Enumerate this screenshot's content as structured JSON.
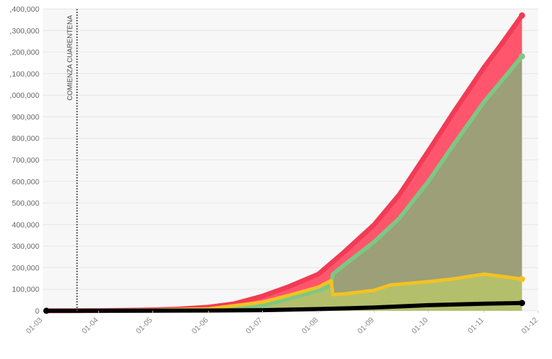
{
  "chart_data": {
    "type": "area",
    "title": "",
    "xlabel": "",
    "ylabel": "",
    "x": [
      "01-03",
      "01-04",
      "01-05",
      "01-06",
      "01-07",
      "01-08",
      "01-09",
      "01-10",
      "01-11"
    ],
    "x_ticks": [
      "01-03",
      "01-04",
      "01-05",
      "01-06",
      "01-07",
      "01-08",
      "01-09",
      "01-10",
      "01-11",
      "01-12"
    ],
    "xlim": [
      "01-03",
      "01-12"
    ],
    "y_ticks": [
      "0",
      "100,000",
      "200,000",
      "300,000",
      "400,000",
      "500,000",
      "600,000",
      "700,000",
      "800,000",
      "900,000",
      ",000,000",
      ",100,000",
      ",200,000",
      ",300,000",
      ",400,000"
    ],
    "ylim": [
      0,
      1400000
    ],
    "grid": true,
    "legend": "none",
    "annotations": [
      {
        "label": "COMIENZA CUARENTENA",
        "x": "2020-03-20",
        "style": "dotted-vertical-line"
      }
    ],
    "series": [
      {
        "color": "#f23b55",
        "points": [
          [
            "2020-03-03",
            0
          ],
          [
            "2020-03-20",
            200
          ],
          [
            "2020-04-01",
            1000
          ],
          [
            "2020-04-15",
            2500
          ],
          [
            "2020-05-01",
            4500
          ],
          [
            "2020-05-15",
            8000
          ],
          [
            "2020-06-01",
            17000
          ],
          [
            "2020-06-15",
            32000
          ],
          [
            "2020-07-01",
            68000
          ],
          [
            "2020-07-15",
            110000
          ],
          [
            "2020-08-01",
            170000
          ],
          [
            "2020-08-15",
            270000
          ],
          [
            "2020-09-01",
            400000
          ],
          [
            "2020-09-15",
            540000
          ],
          [
            "2020-10-01",
            740000
          ],
          [
            "2020-10-15",
            920000
          ],
          [
            "2020-11-01",
            1130000
          ],
          [
            "2020-11-10",
            1230000
          ],
          [
            "2020-11-22",
            1370000
          ]
        ]
      },
      {
        "color": "#7dc882",
        "points": [
          [
            "2020-03-03",
            0
          ],
          [
            "2020-04-01",
            300
          ],
          [
            "2020-05-01",
            1500
          ],
          [
            "2020-06-01",
            7000
          ],
          [
            "2020-07-01",
            25000
          ],
          [
            "2020-07-15",
            55000
          ],
          [
            "2020-08-01",
            95000
          ],
          [
            "2020-08-08",
            115000
          ],
          [
            "2020-08-09",
            170000
          ],
          [
            "2020-08-15",
            210000
          ],
          [
            "2020-09-01",
            320000
          ],
          [
            "2020-09-15",
            430000
          ],
          [
            "2020-10-01",
            600000
          ],
          [
            "2020-10-15",
            770000
          ],
          [
            "2020-11-01",
            970000
          ],
          [
            "2020-11-10",
            1060000
          ],
          [
            "2020-11-22",
            1180000
          ]
        ]
      },
      {
        "color": "#f2c224",
        "points": [
          [
            "2020-03-03",
            0
          ],
          [
            "2020-04-01",
            700
          ],
          [
            "2020-05-01",
            3000
          ],
          [
            "2020-06-01",
            9000
          ],
          [
            "2020-07-01",
            40000
          ],
          [
            "2020-07-15",
            70000
          ],
          [
            "2020-08-01",
            110000
          ],
          [
            "2020-08-08",
            140000
          ],
          [
            "2020-08-09",
            75000
          ],
          [
            "2020-08-15",
            78000
          ],
          [
            "2020-09-01",
            95000
          ],
          [
            "2020-09-10",
            120000
          ],
          [
            "2020-10-01",
            135000
          ],
          [
            "2020-10-15",
            148000
          ],
          [
            "2020-11-01",
            170000
          ],
          [
            "2020-11-10",
            160000
          ],
          [
            "2020-11-22",
            147000
          ]
        ]
      },
      {
        "color": "#000000",
        "points": [
          [
            "2020-03-03",
            0
          ],
          [
            "2020-04-01",
            50
          ],
          [
            "2020-05-01",
            400
          ],
          [
            "2020-06-01",
            1200
          ],
          [
            "2020-07-01",
            3000
          ],
          [
            "2020-08-01",
            8000
          ],
          [
            "2020-09-01",
            15000
          ],
          [
            "2020-10-01",
            26000
          ],
          [
            "2020-11-01",
            33000
          ],
          [
            "2020-11-22",
            36000
          ]
        ]
      }
    ]
  }
}
